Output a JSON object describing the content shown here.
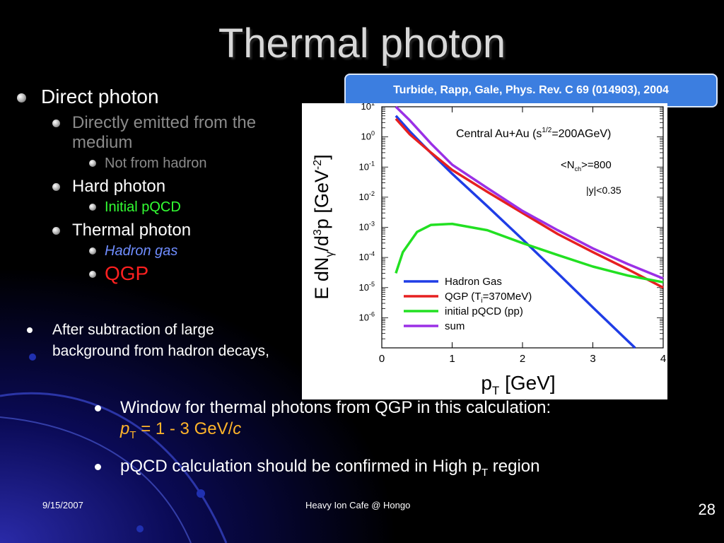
{
  "slide": {
    "title": "Thermal photon",
    "reference": "Turbide, Rapp, Gale, Phys. Rev. C 69 (014903), 2004",
    "bullets": {
      "direct_photon": "Direct photon",
      "directly_emitted": "Directly emitted from the medium",
      "not_from_hadron": "Not from hadron",
      "hard_photon": "Hard photon",
      "initial_pqcd": "Initial pQCD",
      "thermal_photon": "Thermal photon",
      "hadron_gas": "Hadron gas",
      "qgp": "QGP"
    },
    "after_subtraction": "After subtraction of large background from hadron decays,",
    "window_text": "Window for thermal photons from QGP in this calculation:",
    "window_range": {
      "p": "p",
      "sub": "T",
      "rest": " = 1 - 3 GeV/",
      "c": "c"
    },
    "confirm_text": {
      "main": "pQCD calculation should be confirmed in High p",
      "sub": "T",
      "end": " region"
    },
    "footer_date": "9/15/2007",
    "footer_center": "Heavy Ion Cafe @ Hongo",
    "page_number": "28"
  },
  "chart_data": {
    "type": "line",
    "log_y": true,
    "xlim": [
      0,
      4
    ],
    "ylim_exp": [
      -7,
      1
    ],
    "x_ticks": [
      0,
      1,
      2,
      3,
      4
    ],
    "y_tick_exps": [
      1,
      0,
      -1,
      -2,
      -3,
      -4,
      -5,
      -6
    ],
    "xlabel": {
      "main": "p",
      "sub": "T",
      "rest": " [GeV]"
    },
    "ylabel": {
      "a": "E dN",
      "sub": "γ",
      "b": "/d",
      "sup": "3",
      "c": "p [GeV",
      "sup2": "-2",
      "d": "]"
    },
    "annotations": {
      "system": {
        "a": "Central Au+Au (s",
        "sup": "1/2",
        "b": "=200AGeV)"
      },
      "nch": {
        "a": "<N",
        "sub": "ch",
        "b": ">=800"
      },
      "rapidity": "|y|<0.35"
    },
    "series": [
      {
        "name": "Hadron Gas",
        "color": "#1f3de6",
        "x": [
          0.2,
          0.4,
          0.6,
          1.0,
          1.5,
          2.0,
          2.5,
          3.0,
          3.6
        ],
        "y": [
          5,
          1.5,
          0.5,
          0.06,
          0.005,
          0.0004,
          3e-05,
          2.2e-06,
          9e-08
        ]
      },
      {
        "name": "QGP (T_i=370MeV)",
        "label_main": "QGP (T",
        "label_sub": "i",
        "label_end": "=370MeV)",
        "color": "#e62020",
        "x": [
          0.2,
          0.4,
          0.7,
          1.0,
          1.5,
          2.0,
          2.5,
          3.0,
          3.5,
          4.0
        ],
        "y": [
          4,
          1.2,
          0.3,
          0.08,
          0.015,
          0.003,
          0.0006,
          0.00015,
          4e-05,
          1e-05
        ]
      },
      {
        "name": "initial pQCD (pp)",
        "color": "#22e022",
        "x": [
          0.2,
          0.3,
          0.5,
          0.7,
          1.0,
          1.5,
          2.0,
          2.5,
          3.0,
          3.5,
          4.0
        ],
        "y": [
          3e-05,
          0.00015,
          0.0007,
          0.0012,
          0.0013,
          0.0008,
          0.0003,
          0.00012,
          5e-05,
          2.5e-05,
          1.5e-05
        ]
      },
      {
        "name": "sum",
        "color": "#9b30e6",
        "x": [
          0.2,
          0.4,
          0.7,
          1.0,
          1.5,
          2.0,
          2.5,
          3.0,
          3.5,
          4.0
        ],
        "y": [
          12,
          3.5,
          0.6,
          0.12,
          0.02,
          0.0035,
          0.0008,
          0.0002,
          6e-05,
          2e-05
        ]
      }
    ]
  }
}
